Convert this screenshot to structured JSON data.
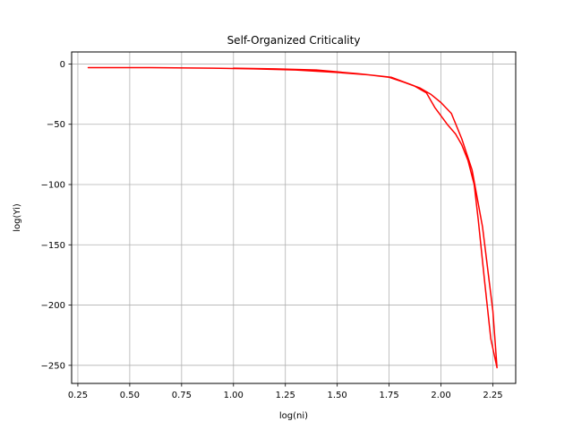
{
  "chart_data": {
    "type": "line",
    "title": "Self-Organized Criticality",
    "xlabel": "log(ni)",
    "ylabel": "log(Yi)",
    "xlim": [
      0.22,
      2.36
    ],
    "ylim": [
      -265,
      10
    ],
    "grid": true,
    "x_ticks": [
      0.25,
      0.5,
      0.75,
      1.0,
      1.25,
      1.5,
      1.75,
      2.0,
      2.25
    ],
    "x_tick_labels": [
      "0.25",
      "0.50",
      "0.75",
      "1.00",
      "1.25",
      "1.50",
      "1.75",
      "2.00",
      "2.25"
    ],
    "y_ticks": [
      0,
      -50,
      -100,
      -150,
      -200,
      -250
    ],
    "y_tick_labels": [
      "0",
      "−50",
      "−100",
      "−150",
      "−200",
      "−250"
    ],
    "series": [
      {
        "color": "#ff0000",
        "x": [
          0.3,
          0.6,
          0.9,
          1.1,
          1.3,
          1.5,
          1.65,
          1.75,
          1.82,
          1.9,
          1.95,
          2.0,
          2.05,
          2.1,
          2.15,
          2.2,
          2.25,
          2.27,
          2.24,
          2.21,
          2.18,
          2.16,
          2.13,
          2.1,
          2.07,
          2.03,
          1.97,
          1.93,
          1.87,
          1.76,
          1.6,
          1.4,
          1.2,
          1.0
        ],
        "y": [
          -3,
          -3,
          -3.5,
          -4,
          -5,
          -7,
          -9,
          -11,
          -15,
          -20,
          -25,
          -32,
          -41,
          -62,
          -88,
          -135,
          -205,
          -252,
          -228,
          -180,
          -130,
          -100,
          -80,
          -67,
          -58,
          -50,
          -36,
          -24,
          -18,
          -11,
          -8,
          -5,
          -4,
          -3.5
        ]
      }
    ]
  }
}
